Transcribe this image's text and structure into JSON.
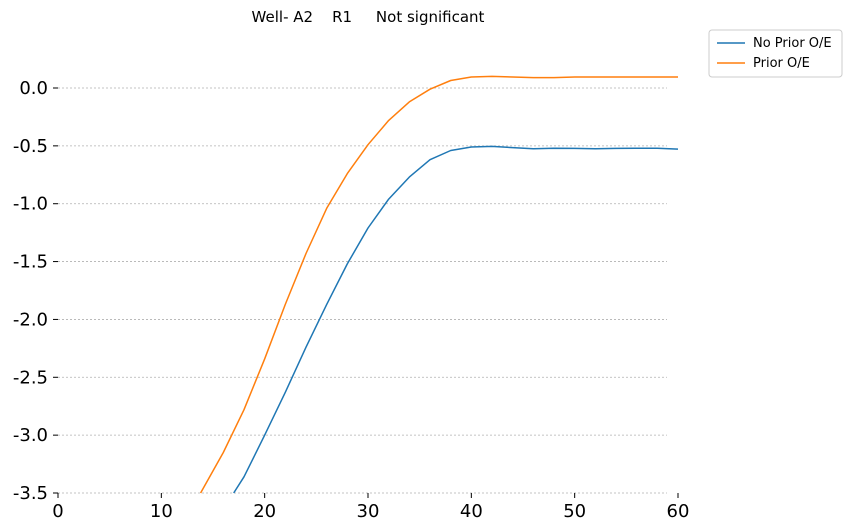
{
  "chart_data": {
    "type": "line",
    "title": "Well- A2    R1     Not significant",
    "xlabel": "",
    "ylabel": "",
    "xlim": [
      0,
      60
    ],
    "ylim": [
      -3.5,
      0.35
    ],
    "x_ticks": [
      0,
      10,
      20,
      30,
      40,
      50,
      60
    ],
    "y_ticks": [
      0.0,
      -0.5,
      -1.0,
      -1.5,
      -2.0,
      -2.5,
      -3.0,
      -3.5
    ],
    "y_tick_labels": [
      "0.0",
      "-0.5",
      "-1.0",
      "-1.5",
      "-2.0",
      "-2.5",
      "-3.0",
      "-3.5"
    ],
    "grid": "horizontal dashed",
    "legend_position": "outside top-right",
    "series": [
      {
        "name": "No Prior O/E",
        "color": "#1f77b4",
        "x": [
          17,
          18,
          20,
          22,
          24,
          26,
          28,
          30,
          32,
          34,
          36,
          38,
          40,
          42,
          44,
          46,
          48,
          50,
          52,
          54,
          56,
          58,
          60
        ],
        "y": [
          -3.5,
          -3.36,
          -3.0,
          -2.63,
          -2.24,
          -1.87,
          -1.52,
          -1.21,
          -0.96,
          -0.77,
          -0.62,
          -0.54,
          -0.51,
          -0.505,
          -0.515,
          -0.525,
          -0.52,
          -0.522,
          -0.525,
          -0.522,
          -0.52,
          -0.52,
          -0.528
        ]
      },
      {
        "name": "Prior O/E",
        "color": "#ff7f0e",
        "x": [
          13.8,
          16,
          18,
          20,
          22,
          24,
          26,
          28,
          30,
          32,
          34,
          36,
          38,
          40,
          42,
          44,
          46,
          48,
          50,
          52,
          54,
          56,
          58,
          60
        ],
        "y": [
          -3.5,
          -3.15,
          -2.78,
          -2.34,
          -1.87,
          -1.43,
          -1.04,
          -0.74,
          -0.49,
          -0.28,
          -0.12,
          -0.01,
          0.065,
          0.095,
          0.1,
          0.095,
          0.09,
          0.09,
          0.095,
          0.095,
          0.095,
          0.095,
          0.095,
          0.095
        ]
      }
    ]
  }
}
